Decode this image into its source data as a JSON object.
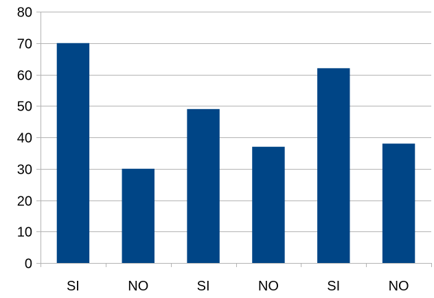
{
  "chart_data": {
    "type": "bar",
    "categories": [
      "SI",
      "NO",
      "SI",
      "NO",
      "SI",
      "NO"
    ],
    "values": [
      70,
      30,
      49,
      37,
      62,
      38
    ],
    "title": "",
    "xlabel": "",
    "ylabel": "",
    "ylim": [
      0,
      80
    ],
    "yticks": [
      0,
      10,
      20,
      30,
      40,
      50,
      60,
      70,
      80
    ],
    "grid": true,
    "legend": "none",
    "colors": {
      "bar": "#004586",
      "grid": "#b3b3b3",
      "axis": "#b3b3b3",
      "text": "#000000"
    }
  }
}
